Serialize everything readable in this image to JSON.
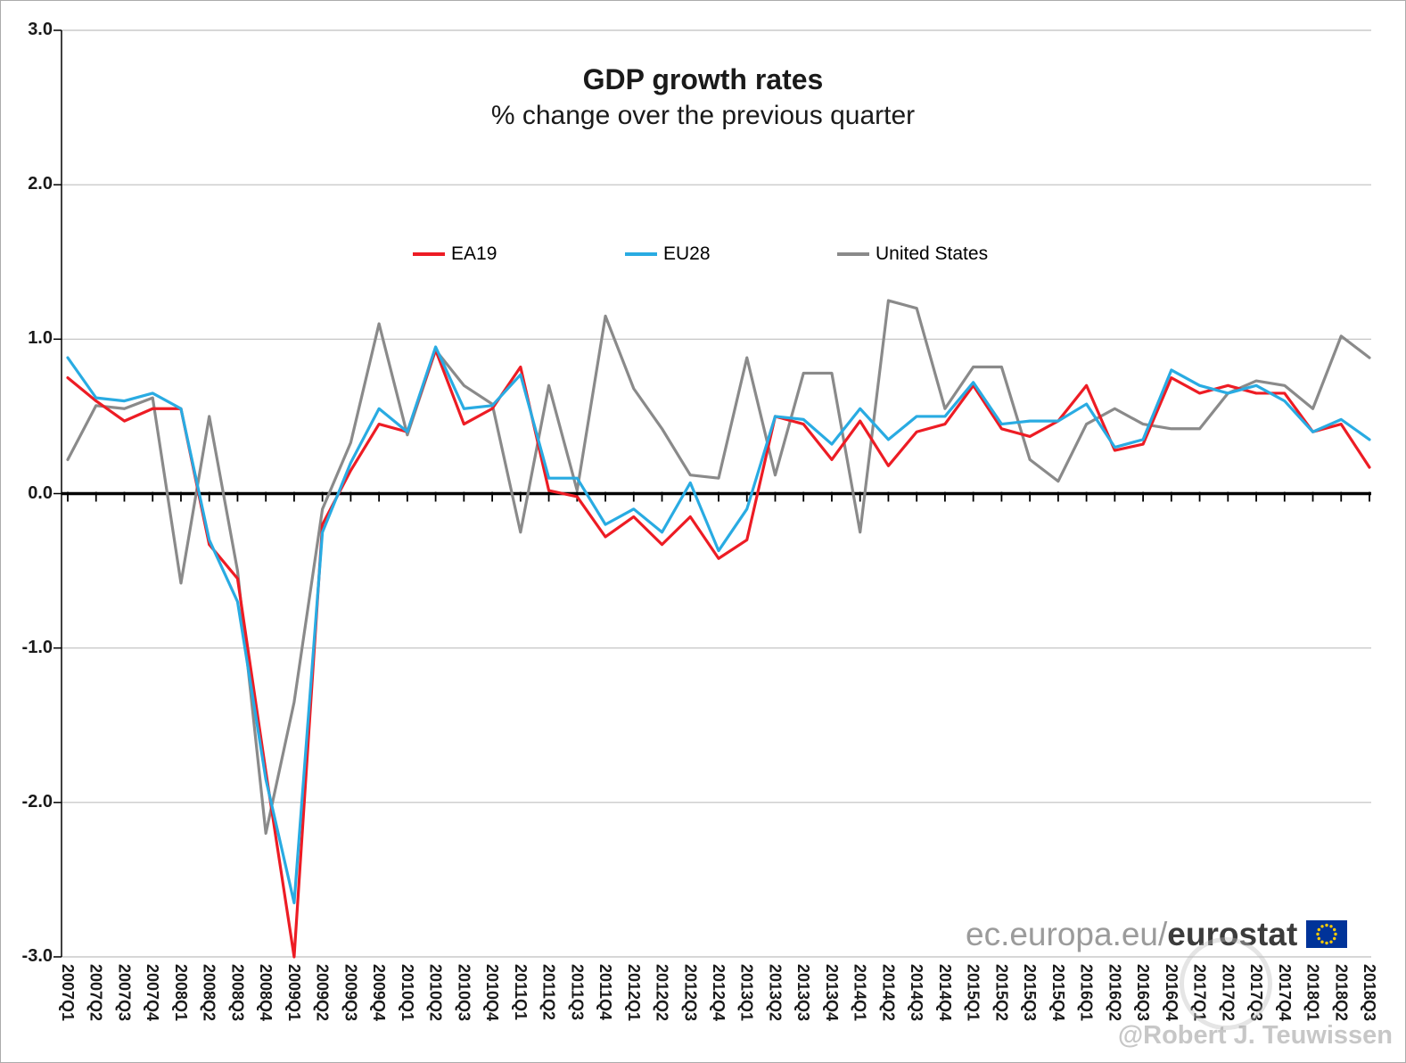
{
  "chart_data": {
    "type": "line",
    "title": "GDP growth rates",
    "subtitle": "% change over the previous quarter",
    "xlabel": "",
    "ylabel": "",
    "ylim": [
      -3.0,
      3.0
    ],
    "y_ticks": [
      3.0,
      2.0,
      1.0,
      0.0,
      -1.0,
      -2.0,
      -3.0
    ],
    "grid": "horizontal",
    "legend_position": "inside-top",
    "categories": [
      "2007Q1",
      "2007Q2",
      "2007Q3",
      "2007Q4",
      "2008Q1",
      "2008Q2",
      "2008Q3",
      "2008Q4",
      "2009Q1",
      "2009Q2",
      "2009Q3",
      "2009Q4",
      "2010Q1",
      "2010Q2",
      "2010Q3",
      "2010Q4",
      "2011Q1",
      "2011Q2",
      "2011Q3",
      "2011Q4",
      "2012Q1",
      "2012Q2",
      "2012Q3",
      "2012Q4",
      "2013Q1",
      "2013Q2",
      "2013Q3",
      "2013Q4",
      "2014Q1",
      "2014Q2",
      "2014Q3",
      "2014Q4",
      "2015Q1",
      "2015Q2",
      "2015Q3",
      "2015Q4",
      "2016Q1",
      "2016Q2",
      "2016Q3",
      "2016Q4",
      "2017Q1",
      "2017Q2",
      "2017Q3",
      "2017Q4",
      "2018Q1",
      "2018Q2",
      "2018Q3"
    ],
    "series": [
      {
        "name": "EA19",
        "color": "#ed1c24",
        "values": [
          0.75,
          0.6,
          0.47,
          0.55,
          0.55,
          -0.33,
          -0.55,
          -1.8,
          -3.0,
          -0.2,
          0.15,
          0.45,
          0.4,
          0.93,
          0.45,
          0.55,
          0.82,
          0.02,
          -0.02,
          -0.28,
          -0.15,
          -0.33,
          -0.15,
          -0.42,
          -0.3,
          0.5,
          0.45,
          0.22,
          0.47,
          0.18,
          0.4,
          0.45,
          0.7,
          0.42,
          0.37,
          0.47,
          0.7,
          0.28,
          0.32,
          0.75,
          0.65,
          0.7,
          0.65,
          0.65,
          0.4,
          0.45,
          0.17
        ]
      },
      {
        "name": "EU28",
        "color": "#29abe2",
        "values": [
          0.88,
          0.62,
          0.6,
          0.65,
          0.55,
          -0.3,
          -0.7,
          -1.85,
          -2.65,
          -0.25,
          0.2,
          0.55,
          0.4,
          0.95,
          0.55,
          0.57,
          0.77,
          0.1,
          0.1,
          -0.2,
          -0.1,
          -0.25,
          0.07,
          -0.37,
          -0.1,
          0.5,
          0.48,
          0.32,
          0.55,
          0.35,
          0.5,
          0.5,
          0.72,
          0.45,
          0.47,
          0.47,
          0.58,
          0.3,
          0.35,
          0.8,
          0.7,
          0.65,
          0.7,
          0.6,
          0.4,
          0.48,
          0.35
        ]
      },
      {
        "name": "United States",
        "color": "#8a8a8a",
        "values": [
          0.22,
          0.57,
          0.55,
          0.62,
          -0.58,
          0.5,
          -0.5,
          -2.2,
          -1.35,
          -0.1,
          0.33,
          1.1,
          0.38,
          0.93,
          0.7,
          0.58,
          -0.25,
          0.7,
          0.02,
          1.15,
          0.68,
          0.42,
          0.12,
          0.1,
          0.88,
          0.12,
          0.78,
          0.78,
          -0.25,
          1.25,
          1.2,
          0.55,
          0.82,
          0.82,
          0.22,
          0.08,
          0.45,
          0.55,
          0.45,
          0.42,
          0.42,
          0.65,
          0.73,
          0.7,
          0.55,
          1.02,
          0.88
        ]
      }
    ]
  },
  "footer": {
    "url_prefix": "ec.europa.eu/",
    "brand": "eurostat",
    "flag_color": "#003399",
    "star_color": "#ffcc00"
  },
  "watermark": {
    "handle": "@Robert J. Teuwissen"
  },
  "colors": {
    "zero_axis": "#000000",
    "axis": "#000000",
    "gridline": "#bfbfbf",
    "text": "#1a1a1a"
  }
}
